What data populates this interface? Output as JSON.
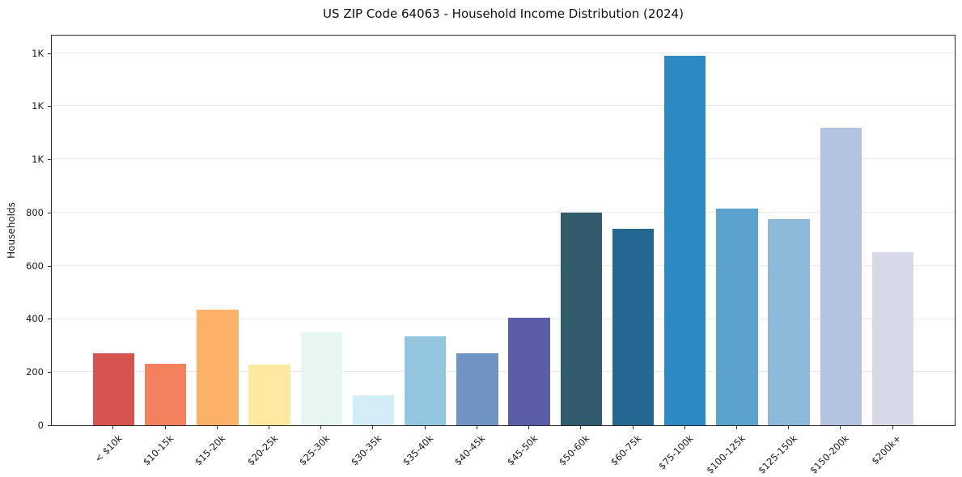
{
  "chart_data": {
    "type": "bar",
    "title": "US ZIP Code 64063 - Household Income Distribution (2024)",
    "xlabel": "",
    "ylabel": "Households",
    "categories": [
      "< $10k",
      "$10-15k",
      "$15-20k",
      "$20-25k",
      "$25-30k",
      "$30-35k",
      "$35-40k",
      "$40-45k",
      "$45-50k",
      "$50-60k",
      "$60-75k",
      "$75-100k",
      "$100-125k",
      "$125-150k",
      "$150-200k",
      "$200k+"
    ],
    "values": [
      270,
      230,
      435,
      228,
      350,
      112,
      335,
      272,
      405,
      800,
      740,
      1390,
      815,
      775,
      1120,
      650
    ],
    "bar_colors": [
      "#d6534f",
      "#f4815e",
      "#fcb266",
      "#fee79f",
      "#e8f6f2",
      "#d2edf5",
      "#92c5de",
      "#6f94c4",
      "#5a5ea8",
      "#2f5b6c",
      "#23688e",
      "#2d89c4",
      "#5aa2cd",
      "#8cb8da",
      "#b4c4e0",
      "#d8d9e8"
    ],
    "ylim": [
      0,
      1466
    ],
    "xlim": [
      -1.19,
      16.19
    ],
    "bar_width": 0.8,
    "yticks": {
      "values": [
        0,
        200,
        400,
        600,
        800,
        1000,
        1200,
        1400
      ],
      "labels": [
        "0",
        "200",
        "400",
        "600",
        "800",
        "1K",
        "1K",
        "1K"
      ]
    },
    "grid": "horizontal",
    "legend": "none"
  }
}
